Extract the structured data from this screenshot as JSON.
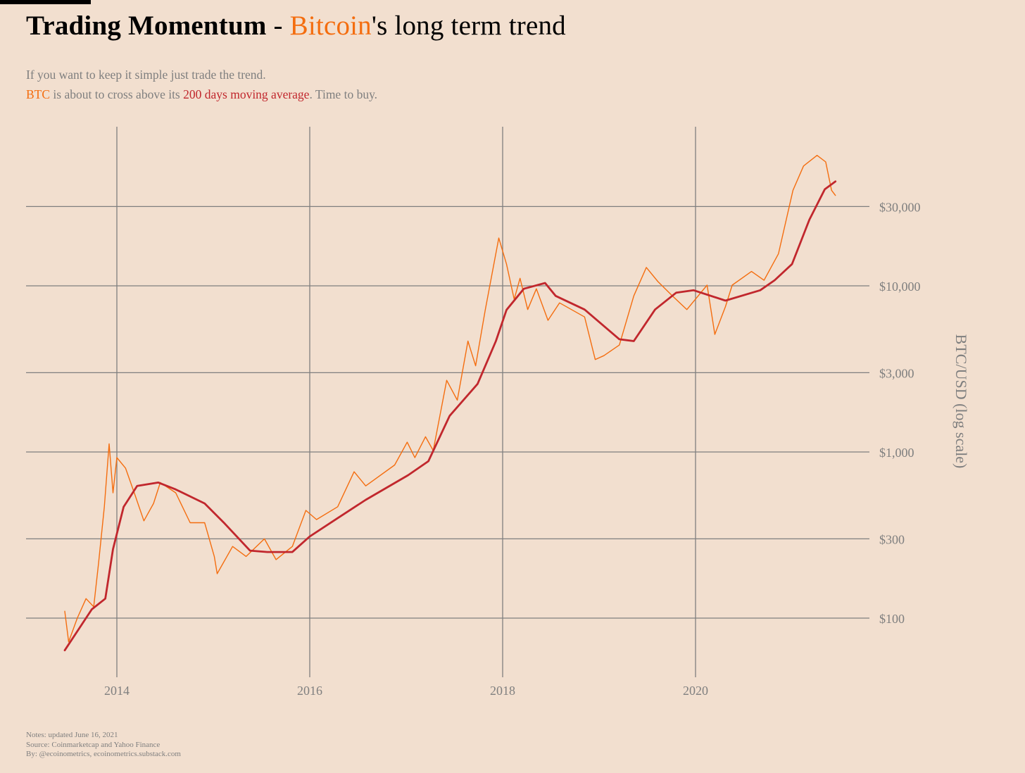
{
  "header": {
    "title_bold": "Trading Momentum",
    "title_sep": " - ",
    "title_accent": "Bitcoin",
    "title_rest": "'s long term trend",
    "subtitle_line1": "If you want to keep it simple just trade the trend.",
    "subtitle_line2_btc": "BTC",
    "subtitle_line2_mid": " is about to cross above its ",
    "subtitle_line2_ma": "200 days moving average",
    "subtitle_line2_end": ". Time to buy."
  },
  "footer": {
    "notes": "Notes: updated June 16, 2021",
    "source": "Source: Coinmarketcap and Yahoo Finance",
    "by": "By: @ecoinometrics, ecoinometrics.substack.com"
  },
  "colors": {
    "background": "#f2dfcf",
    "price": "#f46d0f",
    "moving_average": "#c1272d",
    "grid": "#7f7f7f",
    "text_muted": "#7f7f7f"
  },
  "chart_data": {
    "type": "line",
    "title": "Trading Momentum - Bitcoin's long term trend",
    "xlabel": "",
    "ylabel": "BTC/USD (log scale)",
    "yscale": "log",
    "xlim": [
      2013.0,
      2021.7
    ],
    "ylim": [
      45,
      90000
    ],
    "grid": true,
    "legend": "none",
    "x_ticks": [
      2014,
      2016,
      2018,
      2020
    ],
    "x_tick_labels": [
      "2014",
      "2016",
      "2018",
      "2020"
    ],
    "y_ticks": [
      100,
      300,
      1000,
      3000,
      10000,
      30000
    ],
    "y_tick_labels": [
      "$100",
      "$300",
      "$1,000",
      "$3,000",
      "$10,000",
      "$30,000"
    ],
    "y_axis_side": "right",
    "series": [
      {
        "name": "BTC price",
        "color": "#f46d0f",
        "x": [
          2013.46,
          2013.5,
          2013.59,
          2013.68,
          2013.76,
          2013.81,
          2013.87,
          2013.92,
          2013.96,
          2014.0,
          2014.09,
          2014.18,
          2014.28,
          2014.38,
          2014.45,
          2014.61,
          2014.76,
          2014.91,
          2015.01,
          2015.04,
          2015.2,
          2015.34,
          2015.53,
          2015.65,
          2015.82,
          2015.96,
          2016.07,
          2016.29,
          2016.46,
          2016.58,
          2016.88,
          2017.01,
          2017.09,
          2017.2,
          2017.28,
          2017.42,
          2017.53,
          2017.64,
          2017.72,
          2017.82,
          2017.96,
          2018.04,
          2018.12,
          2018.18,
          2018.26,
          2018.35,
          2018.47,
          2018.59,
          2018.85,
          2018.96,
          2019.05,
          2019.21,
          2019.36,
          2019.49,
          2019.61,
          2019.76,
          2019.91,
          2020.12,
          2020.2,
          2020.31,
          2020.38,
          2020.58,
          2020.71,
          2020.86,
          2021.01,
          2021.12,
          2021.26,
          2021.35,
          2021.41,
          2021.45
        ],
        "values": [
          110,
          72,
          100,
          131,
          117,
          214,
          467,
          1120,
          568,
          925,
          800,
          568,
          385,
          490,
          655,
          568,
          375,
          375,
          235,
          185,
          270,
          235,
          300,
          225,
          270,
          445,
          392,
          468,
          760,
          625,
          835,
          1145,
          925,
          1235,
          1020,
          2700,
          2050,
          4650,
          3300,
          7160,
          19400,
          13500,
          8300,
          11100,
          7200,
          9600,
          6200,
          7900,
          6500,
          3600,
          3800,
          4400,
          8700,
          12900,
          10600,
          8700,
          7200,
          10100,
          5100,
          7500,
          10100,
          12200,
          10800,
          15600,
          37600,
          52600,
          61000,
          55700,
          37600,
          35000
        ]
      },
      {
        "name": "200 days moving average",
        "color": "#c1272d",
        "x": [
          2013.46,
          2013.74,
          2013.88,
          2013.96,
          2014.07,
          2014.21,
          2014.43,
          2014.61,
          2014.91,
          2015.12,
          2015.38,
          2015.56,
          2015.82,
          2016.0,
          2016.29,
          2016.58,
          2017.02,
          2017.23,
          2017.45,
          2017.74,
          2017.93,
          2018.04,
          2018.22,
          2018.44,
          2018.55,
          2018.85,
          2019.21,
          2019.36,
          2019.58,
          2019.8,
          2019.98,
          2020.31,
          2020.67,
          2020.82,
          2021.0,
          2021.18,
          2021.34,
          2021.45
        ],
        "values": [
          64,
          113,
          131,
          260,
          467,
          625,
          655,
          595,
          490,
          370,
          255,
          250,
          250,
          310,
          400,
          515,
          725,
          880,
          1650,
          2570,
          4650,
          7160,
          9600,
          10400,
          8700,
          7200,
          4770,
          4650,
          7200,
          9100,
          9400,
          8150,
          9400,
          10800,
          13500,
          25000,
          38100,
          42500
        ]
      }
    ]
  }
}
